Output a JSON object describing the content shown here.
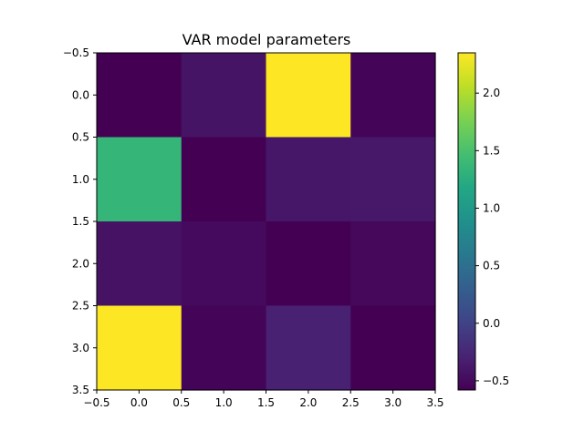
{
  "chart_data": {
    "type": "heatmap",
    "title": "VAR model parameters",
    "xlabel": "",
    "ylabel": "",
    "rows": 4,
    "cols": 4,
    "values": [
      [
        -0.58,
        -0.42,
        2.35,
        -0.55
      ],
      [
        1.35,
        -0.58,
        -0.4,
        -0.38
      ],
      [
        -0.43,
        -0.5,
        -0.58,
        -0.52
      ],
      [
        2.35,
        -0.55,
        -0.3,
        -0.58
      ]
    ],
    "colormap": "viridis",
    "vmin": -0.58,
    "vmax": 2.35,
    "xlim": [
      -0.5,
      3.5
    ],
    "ylim": [
      3.5,
      -0.5
    ],
    "x_ticks": [
      -0.5,
      0.0,
      0.5,
      1.0,
      1.5,
      2.0,
      2.5,
      3.0,
      3.5
    ],
    "x_tick_labels": [
      "−0.5",
      "0.0",
      "0.5",
      "1.0",
      "1.5",
      "2.0",
      "2.5",
      "3.0",
      "3.5"
    ],
    "y_ticks": [
      -0.5,
      0.0,
      0.5,
      1.0,
      1.5,
      2.0,
      2.5,
      3.0,
      3.5
    ],
    "y_tick_labels": [
      "−0.5",
      "0.0",
      "0.5",
      "1.0",
      "1.5",
      "2.0",
      "2.5",
      "3.0",
      "3.5"
    ],
    "colorbar": {
      "ticks": [
        -0.5,
        0.0,
        0.5,
        1.0,
        1.5,
        2.0
      ],
      "tick_labels": [
        "−0.5",
        "0.0",
        "0.5",
        "1.0",
        "1.5",
        "2.0"
      ]
    },
    "grid": false,
    "legend": "none"
  }
}
